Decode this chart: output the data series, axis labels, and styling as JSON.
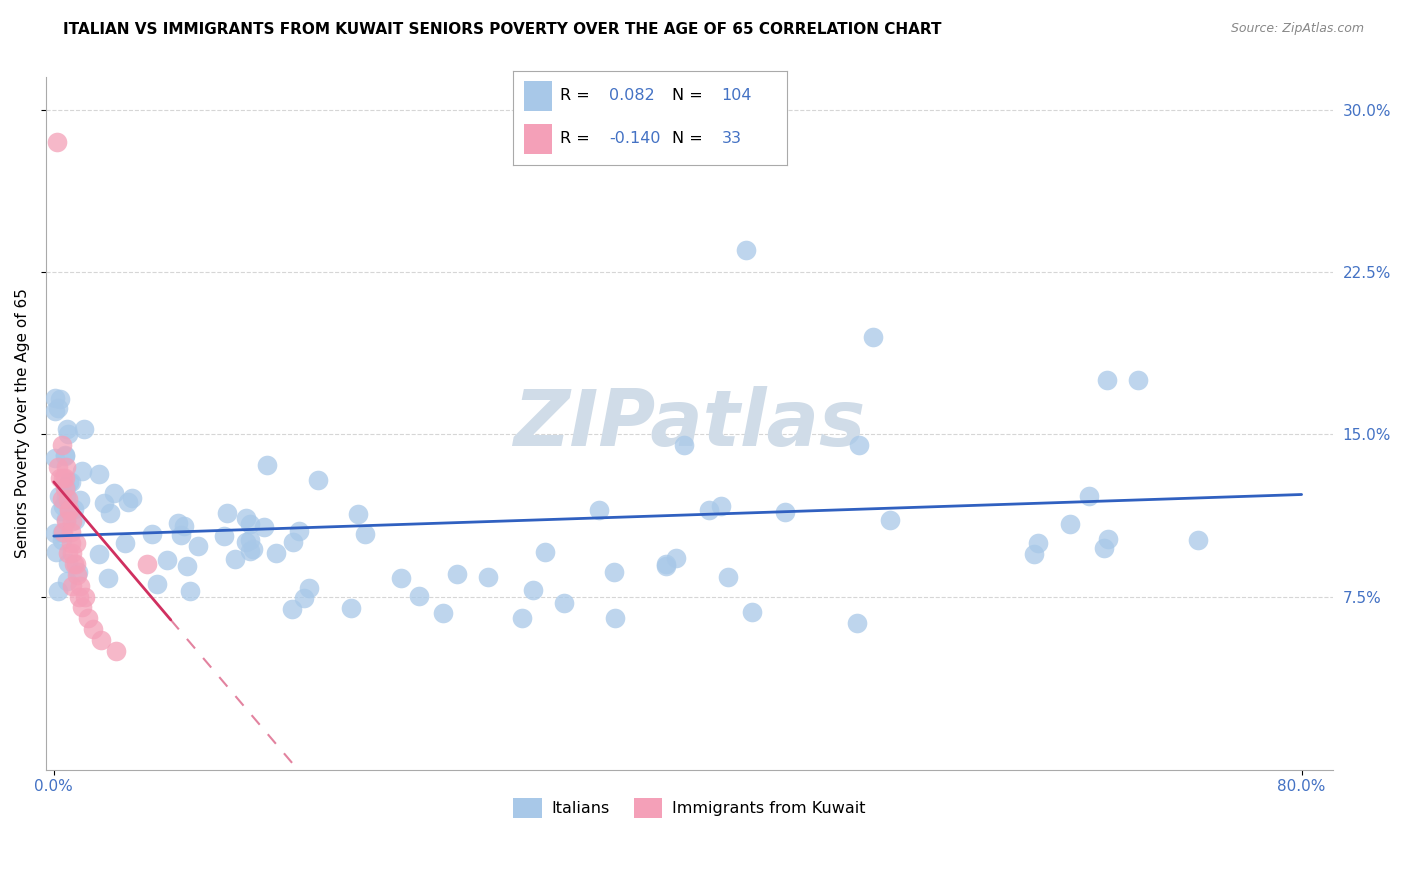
{
  "title": "ITALIAN VS IMMIGRANTS FROM KUWAIT SENIORS POVERTY OVER THE AGE OF 65 CORRELATION CHART",
  "source": "Source: ZipAtlas.com",
  "ylabel": "Seniors Poverty Over the Age of 65",
  "xlim": [
    0.0,
    0.8
  ],
  "ylim": [
    0.0,
    0.315
  ],
  "yticks": [
    0.075,
    0.15,
    0.225,
    0.3
  ],
  "ytick_labels": [
    "7.5%",
    "15.0%",
    "22.5%",
    "30.0%"
  ],
  "series1_color": "#a8c8e8",
  "series2_color": "#f4a0b8",
  "trendline1_color": "#3060c0",
  "trendline2_color": "#d03060",
  "background_color": "#ffffff",
  "grid_color": "#cccccc",
  "title_fontsize": 11,
  "axis_fontsize": 11,
  "tick_fontsize": 11,
  "tick_color": "#4472c4",
  "watermark_color": "#d0dce8"
}
